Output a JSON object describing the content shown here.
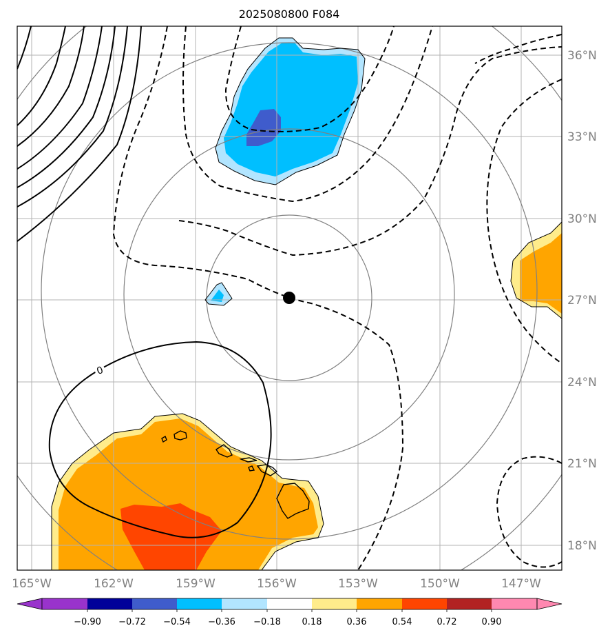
{
  "title": "2025080800 F084",
  "colors": {
    "grid": "#b3b3b3",
    "range_rings": "#808080",
    "contour": "#000000",
    "coast": "#000000",
    "center_marker": "#000000"
  },
  "map": {
    "lon_labels": [
      "165°W",
      "162°W",
      "159°W",
      "156°W",
      "153°W",
      "150°W",
      "147°W"
    ],
    "lat_labels": [
      "36°N",
      "33°N",
      "30°N",
      "27°N",
      "24°N",
      "21°N",
      "18°N"
    ],
    "contour_label": "0",
    "center_marker": {
      "lon": -155.6,
      "lat": 27.1
    }
  },
  "colorbar": {
    "ticks": [
      "−0.90",
      "−0.72",
      "−0.54",
      "−0.36",
      "−0.18",
      "0.18",
      "0.36",
      "0.54",
      "0.72",
      "0.90"
    ],
    "colors": [
      "#9933cc",
      "#000099",
      "#3f5ccc",
      "#00bfff",
      "#b2e5ff",
      "#ffffff",
      "#ffec8b",
      "#ffa500",
      "#ff4500",
      "#b22222",
      "#ff88b0"
    ],
    "extend": "both"
  }
}
